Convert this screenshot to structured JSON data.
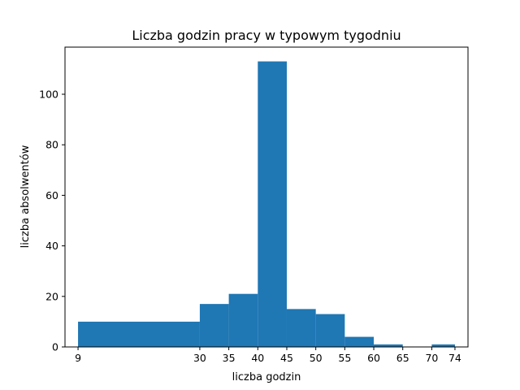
{
  "chart_data": {
    "type": "bar",
    "title": "Liczba godzin pracy w typowym tygodniu",
    "xlabel": "liczba godzin",
    "ylabel": "liczba absolwentów",
    "xlim": [
      6.75,
      76.25
    ],
    "ylim": [
      0,
      118.65
    ],
    "x_ticks": [
      9,
      30,
      35,
      40,
      45,
      50,
      55,
      60,
      65,
      70,
      74
    ],
    "y_ticks": [
      0,
      20,
      40,
      60,
      80,
      100
    ],
    "bins": [
      {
        "start": 9,
        "end": 30,
        "value": 10
      },
      {
        "start": 30,
        "end": 35,
        "value": 17
      },
      {
        "start": 35,
        "end": 40,
        "value": 21
      },
      {
        "start": 40,
        "end": 45,
        "value": 113
      },
      {
        "start": 45,
        "end": 50,
        "value": 15
      },
      {
        "start": 50,
        "end": 55,
        "value": 13
      },
      {
        "start": 55,
        "end": 60,
        "value": 4
      },
      {
        "start": 60,
        "end": 65,
        "value": 1
      },
      {
        "start": 65,
        "end": 70,
        "value": 0
      },
      {
        "start": 70,
        "end": 74,
        "value": 1
      }
    ],
    "bar_color": "#1f77b4",
    "grid": false,
    "legend": "none"
  }
}
